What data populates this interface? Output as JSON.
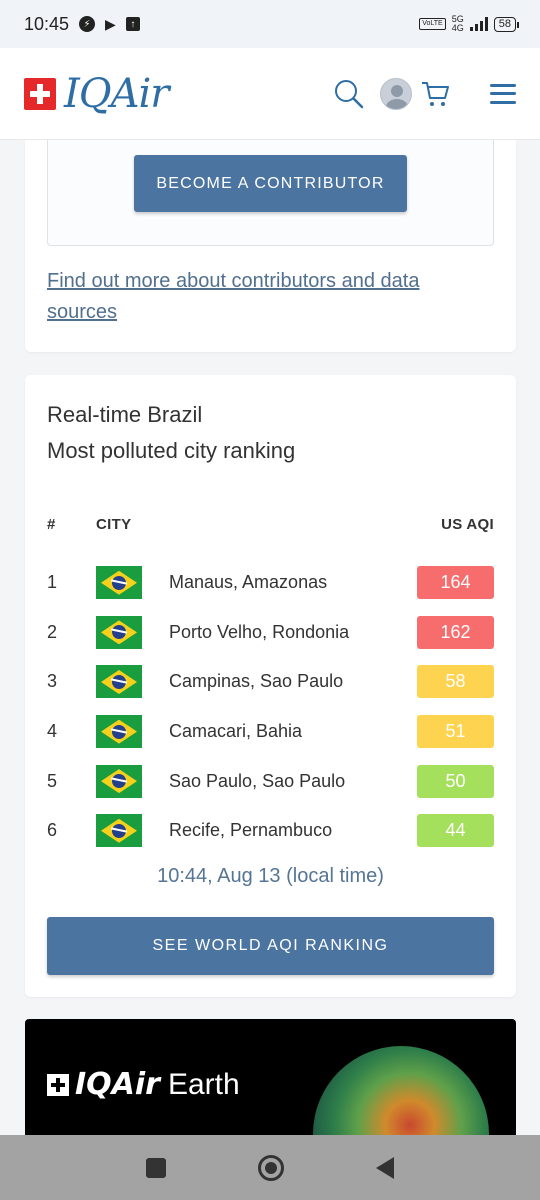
{
  "status_bar": {
    "time": "10:45",
    "network": "5G",
    "network_sub": "4G",
    "volte": "VoLTE",
    "battery": "58"
  },
  "header": {
    "logo_text": "IQAir"
  },
  "contributor": {
    "button_label": "BECOME A CONTRIBUTOR",
    "link_text": "Find out more about contributors and data sources"
  },
  "ranking": {
    "title_line1": "Real-time Brazil",
    "title_line2": "Most polluted city ranking",
    "columns": {
      "rank": "#",
      "city": "CITY",
      "aqi": "US AQI"
    },
    "rows": [
      {
        "rank": "1",
        "city": "Manaus, Amazonas",
        "aqi": "164",
        "color": "#f76c6c"
      },
      {
        "rank": "2",
        "city": "Porto Velho, Rondonia",
        "aqi": "162",
        "color": "#f76c6c"
      },
      {
        "rank": "3",
        "city": "Campinas, Sao Paulo",
        "aqi": "58",
        "color": "#fdd34f"
      },
      {
        "rank": "4",
        "city": "Camacari, Bahia",
        "aqi": "51",
        "color": "#fdd34f"
      },
      {
        "rank": "5",
        "city": "Sao Paulo, Sao Paulo",
        "aqi": "50",
        "color": "#a4e05c"
      },
      {
        "rank": "6",
        "city": "Recife, Pernambuco",
        "aqi": "44",
        "color": "#a4e05c"
      }
    ],
    "updated": "10:44, Aug 13 (local time)",
    "world_button": "SEE WORLD AQI RANKING"
  },
  "earth_banner": {
    "brand": "IQAir",
    "word": "Earth"
  },
  "colors": {
    "brand_blue": "#2f6ea4",
    "button_blue": "#4c74a0",
    "logo_red": "#e5282a"
  }
}
